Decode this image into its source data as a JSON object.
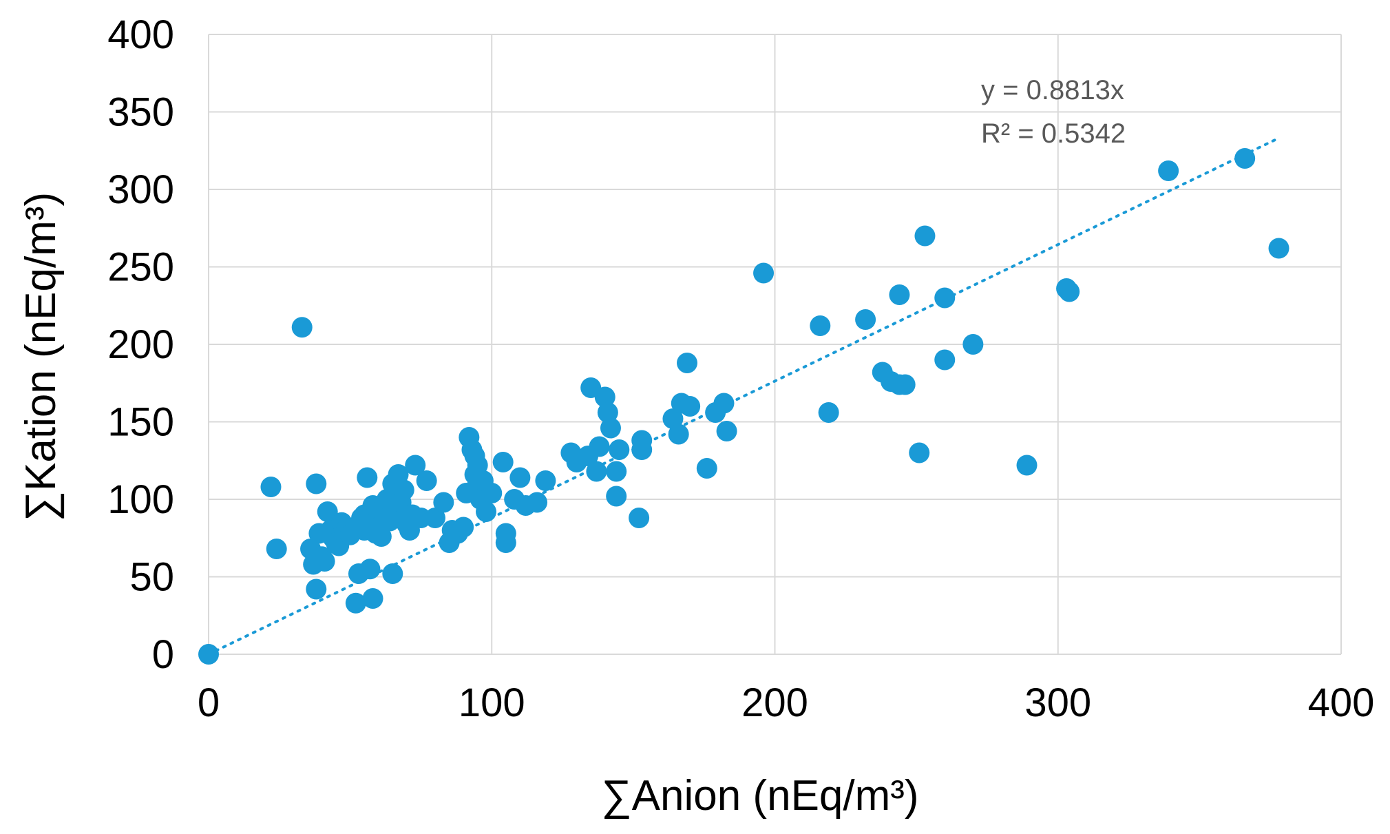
{
  "chart_data": {
    "type": "scatter",
    "xlabel": "∑Anion (nEq/m³)",
    "ylabel": "∑Kation (nEq/m³)",
    "xlim": [
      0,
      400
    ],
    "ylim": [
      0,
      400
    ],
    "xticks": [
      0,
      100,
      200,
      300,
      400
    ],
    "yticks": [
      0,
      50,
      100,
      150,
      200,
      250,
      300,
      350,
      400
    ],
    "xtick_labels": [
      "0",
      "100",
      "200",
      "300",
      "400"
    ],
    "ytick_labels": [
      "0",
      "50",
      "100",
      "150",
      "200",
      "250",
      "300",
      "350",
      "400"
    ],
    "grid": true,
    "marker_color": "#1a9ad6",
    "trendline": {
      "slope": 0.8813,
      "x_range": [
        0,
        378
      ],
      "equation": "y = 0.8813x",
      "r_squared": "R² = 0.5342",
      "style": "dotted"
    },
    "points": [
      [
        0,
        0
      ],
      [
        22,
        108
      ],
      [
        24,
        68
      ],
      [
        33,
        211
      ],
      [
        36,
        68
      ],
      [
        37,
        58
      ],
      [
        38,
        42
      ],
      [
        38,
        110
      ],
      [
        39,
        78
      ],
      [
        40,
        63
      ],
      [
        41,
        60
      ],
      [
        42,
        92
      ],
      [
        43,
        80
      ],
      [
        44,
        75
      ],
      [
        45,
        72
      ],
      [
        46,
        70
      ],
      [
        47,
        85
      ],
      [
        48,
        78
      ],
      [
        49,
        82
      ],
      [
        50,
        77
      ],
      [
        52,
        33
      ],
      [
        53,
        52
      ],
      [
        54,
        88
      ],
      [
        55,
        90
      ],
      [
        55,
        80
      ],
      [
        56,
        114
      ],
      [
        57,
        55
      ],
      [
        58,
        36
      ],
      [
        58,
        96
      ],
      [
        59,
        78
      ],
      [
        60,
        92
      ],
      [
        60,
        82
      ],
      [
        61,
        76
      ],
      [
        62,
        96
      ],
      [
        63,
        100
      ],
      [
        64,
        86
      ],
      [
        65,
        52
      ],
      [
        65,
        110
      ],
      [
        66,
        92
      ],
      [
        67,
        116
      ],
      [
        67,
        88
      ],
      [
        68,
        98
      ],
      [
        69,
        106
      ],
      [
        70,
        84
      ],
      [
        71,
        80
      ],
      [
        72,
        90
      ],
      [
        73,
        122
      ],
      [
        75,
        88
      ],
      [
        77,
        112
      ],
      [
        80,
        88
      ],
      [
        83,
        98
      ],
      [
        85,
        72
      ],
      [
        86,
        80
      ],
      [
        88,
        78
      ],
      [
        90,
        82
      ],
      [
        91,
        104
      ],
      [
        92,
        140
      ],
      [
        93,
        132
      ],
      [
        94,
        128
      ],
      [
        94,
        116
      ],
      [
        95,
        122
      ],
      [
        95,
        110
      ],
      [
        96,
        100
      ],
      [
        97,
        112
      ],
      [
        98,
        92
      ],
      [
        100,
        104
      ],
      [
        104,
        124
      ],
      [
        105,
        78
      ],
      [
        105,
        72
      ],
      [
        108,
        100
      ],
      [
        110,
        114
      ],
      [
        112,
        96
      ],
      [
        116,
        98
      ],
      [
        119,
        112
      ],
      [
        128,
        130
      ],
      [
        130,
        124
      ],
      [
        134,
        128
      ],
      [
        135,
        172
      ],
      [
        137,
        118
      ],
      [
        138,
        134
      ],
      [
        140,
        166
      ],
      [
        141,
        156
      ],
      [
        142,
        146
      ],
      [
        144,
        102
      ],
      [
        144,
        118
      ],
      [
        145,
        132
      ],
      [
        152,
        88
      ],
      [
        153,
        138
      ],
      [
        153,
        132
      ],
      [
        164,
        152
      ],
      [
        166,
        142
      ],
      [
        167,
        162
      ],
      [
        169,
        188
      ],
      [
        170,
        160
      ],
      [
        176,
        120
      ],
      [
        179,
        156
      ],
      [
        182,
        162
      ],
      [
        183,
        144
      ],
      [
        196,
        246
      ],
      [
        216,
        212
      ],
      [
        219,
        156
      ],
      [
        232,
        216
      ],
      [
        238,
        182
      ],
      [
        241,
        176
      ],
      [
        244,
        174
      ],
      [
        244,
        232
      ],
      [
        246,
        174
      ],
      [
        251,
        130
      ],
      [
        253,
        270
      ],
      [
        260,
        230
      ],
      [
        260,
        190
      ],
      [
        270,
        200
      ],
      [
        289,
        122
      ],
      [
        303,
        236
      ],
      [
        304,
        234
      ],
      [
        339,
        312
      ],
      [
        366,
        320
      ],
      [
        378,
        262
      ]
    ]
  }
}
